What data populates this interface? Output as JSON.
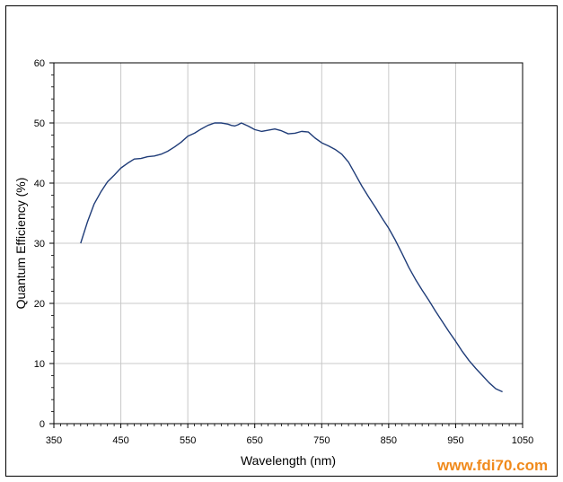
{
  "chart_data": {
    "type": "line",
    "title": "",
    "xlabel": "Wavelength (nm)",
    "ylabel": "Quantum Efficiency (%)",
    "xlim": [
      350,
      1050
    ],
    "ylim": [
      0,
      60
    ],
    "x_ticks": [
      350,
      450,
      550,
      650,
      750,
      850,
      950,
      1050
    ],
    "y_ticks": [
      0,
      10,
      20,
      30,
      40,
      50,
      60
    ],
    "grid": true,
    "legend": "none",
    "series": [
      {
        "color": "#1f3c78",
        "points": [
          [
            390,
            30.0
          ],
          [
            400,
            33.5
          ],
          [
            410,
            36.5
          ],
          [
            420,
            38.5
          ],
          [
            430,
            40.2
          ],
          [
            440,
            41.3
          ],
          [
            450,
            42.5
          ],
          [
            460,
            43.3
          ],
          [
            470,
            44.0
          ],
          [
            480,
            44.1
          ],
          [
            490,
            44.4
          ],
          [
            500,
            44.5
          ],
          [
            510,
            44.8
          ],
          [
            520,
            45.3
          ],
          [
            530,
            46.0
          ],
          [
            540,
            46.8
          ],
          [
            550,
            47.8
          ],
          [
            560,
            48.3
          ],
          [
            570,
            49.0
          ],
          [
            580,
            49.6
          ],
          [
            590,
            50.0
          ],
          [
            600,
            50.0
          ],
          [
            610,
            49.8
          ],
          [
            615,
            49.6
          ],
          [
            620,
            49.5
          ],
          [
            625,
            49.7
          ],
          [
            630,
            50.0
          ],
          [
            640,
            49.5
          ],
          [
            650,
            48.9
          ],
          [
            660,
            48.6
          ],
          [
            670,
            48.8
          ],
          [
            680,
            49.0
          ],
          [
            690,
            48.7
          ],
          [
            700,
            48.2
          ],
          [
            710,
            48.3
          ],
          [
            720,
            48.6
          ],
          [
            730,
            48.5
          ],
          [
            740,
            47.5
          ],
          [
            750,
            46.7
          ],
          [
            760,
            46.2
          ],
          [
            770,
            45.6
          ],
          [
            780,
            44.8
          ],
          [
            790,
            43.5
          ],
          [
            800,
            41.5
          ],
          [
            810,
            39.5
          ],
          [
            820,
            37.7
          ],
          [
            830,
            36.0
          ],
          [
            840,
            34.2
          ],
          [
            850,
            32.5
          ],
          [
            860,
            30.5
          ],
          [
            870,
            28.3
          ],
          [
            880,
            26.0
          ],
          [
            890,
            24.0
          ],
          [
            900,
            22.2
          ],
          [
            910,
            20.5
          ],
          [
            920,
            18.7
          ],
          [
            930,
            17.0
          ],
          [
            940,
            15.3
          ],
          [
            950,
            13.7
          ],
          [
            960,
            12.0
          ],
          [
            970,
            10.5
          ],
          [
            980,
            9.2
          ],
          [
            990,
            8.0
          ],
          [
            1000,
            6.8
          ],
          [
            1010,
            5.8
          ],
          [
            1020,
            5.3
          ]
        ]
      }
    ]
  },
  "watermark": "www.fdi70.com"
}
